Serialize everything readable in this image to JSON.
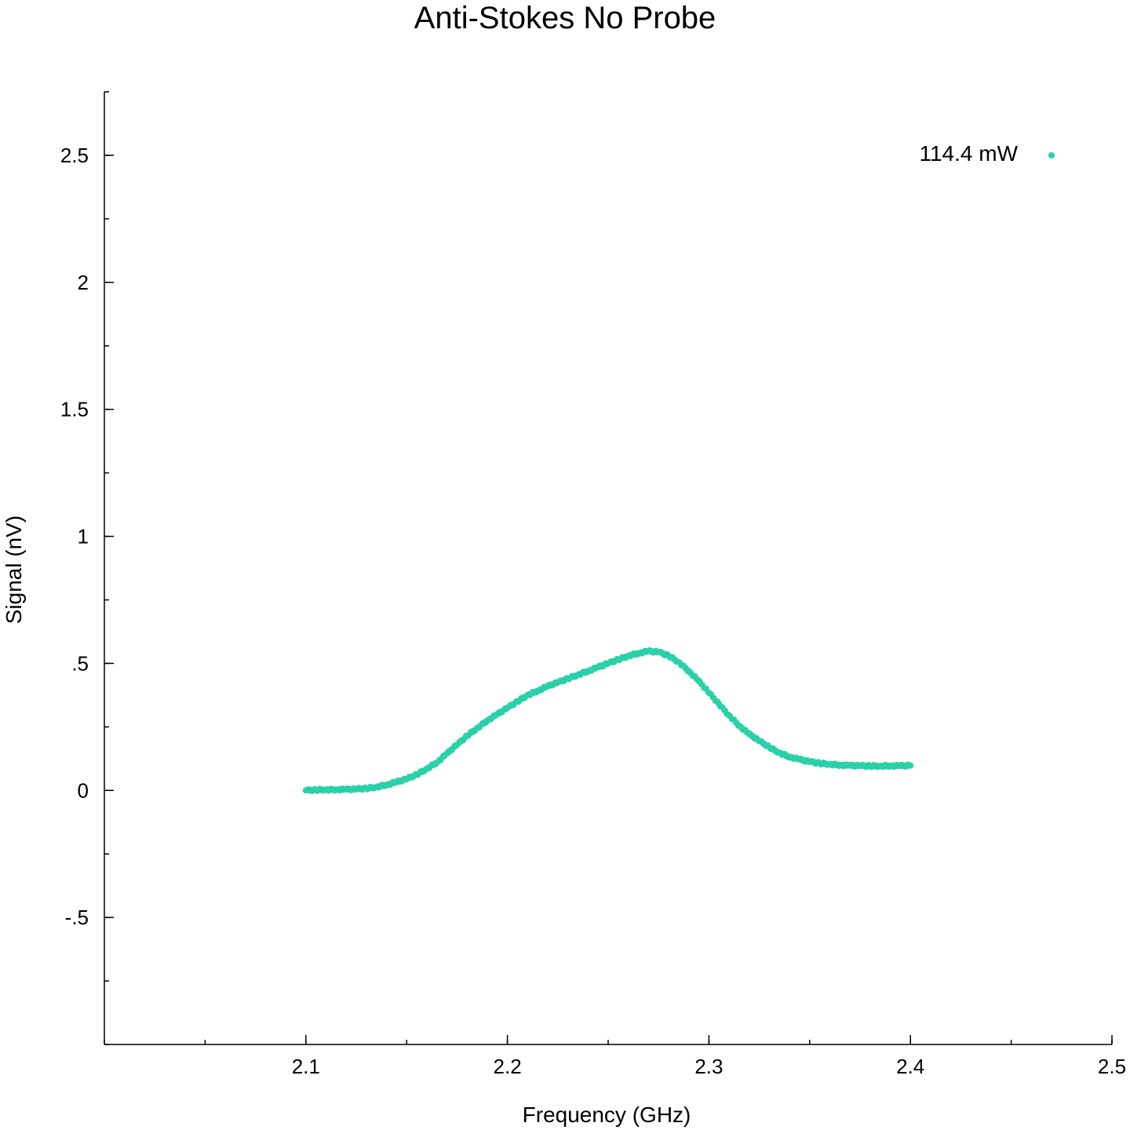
{
  "chart_data": {
    "type": "scatter",
    "title": "Anti-Stokes No Probe",
    "xlabel": "Frequency (GHz)",
    "ylabel": "Signal (nV)",
    "xlim": [
      2.0,
      2.5
    ],
    "ylim": [
      -1.0,
      2.75
    ],
    "x_ticks": [
      {
        "value": 2.1,
        "label": "2.1"
      },
      {
        "value": 2.2,
        "label": "2.2"
      },
      {
        "value": 2.3,
        "label": "2.3"
      },
      {
        "value": 2.4,
        "label": "2.4"
      },
      {
        "value": 2.5,
        "label": "2.5"
      }
    ],
    "y_ticks": [
      {
        "value": -0.5,
        "label": "-.5"
      },
      {
        "value": 0,
        "label": "0"
      },
      {
        "value": 0.5,
        "label": ".5"
      },
      {
        "value": 1,
        "label": "1"
      },
      {
        "value": 1.5,
        "label": "1.5"
      },
      {
        "value": 2,
        "label": "2"
      },
      {
        "value": 2.5,
        "label": "2.5"
      }
    ],
    "grid": false,
    "legend_position": "top-right",
    "series": [
      {
        "name": "114.4 mW",
        "color": "#2ad1a8",
        "points": [
          [
            2.1,
            0.0
          ],
          [
            2.105,
            0.002
          ],
          [
            2.11,
            0.003
          ],
          [
            2.115,
            0.003
          ],
          [
            2.12,
            0.004
          ],
          [
            2.125,
            0.005
          ],
          [
            2.13,
            0.008
          ],
          [
            2.135,
            0.013
          ],
          [
            2.14,
            0.022
          ],
          [
            2.145,
            0.033
          ],
          [
            2.15,
            0.045
          ],
          [
            2.155,
            0.062
          ],
          [
            2.16,
            0.085
          ],
          [
            2.165,
            0.11
          ],
          [
            2.17,
            0.145
          ],
          [
            2.175,
            0.18
          ],
          [
            2.18,
            0.215
          ],
          [
            2.185,
            0.245
          ],
          [
            2.19,
            0.275
          ],
          [
            2.195,
            0.3
          ],
          [
            2.2,
            0.325
          ],
          [
            2.205,
            0.35
          ],
          [
            2.21,
            0.375
          ],
          [
            2.215,
            0.392
          ],
          [
            2.22,
            0.41
          ],
          [
            2.225,
            0.425
          ],
          [
            2.23,
            0.44
          ],
          [
            2.235,
            0.455
          ],
          [
            2.24,
            0.47
          ],
          [
            2.245,
            0.485
          ],
          [
            2.25,
            0.5
          ],
          [
            2.255,
            0.515
          ],
          [
            2.26,
            0.53
          ],
          [
            2.265,
            0.54
          ],
          [
            2.27,
            0.548
          ],
          [
            2.275,
            0.545
          ],
          [
            2.28,
            0.53
          ],
          [
            2.285,
            0.505
          ],
          [
            2.29,
            0.47
          ],
          [
            2.295,
            0.43
          ],
          [
            2.3,
            0.385
          ],
          [
            2.305,
            0.34
          ],
          [
            2.31,
            0.295
          ],
          [
            2.315,
            0.255
          ],
          [
            2.32,
            0.222
          ],
          [
            2.325,
            0.195
          ],
          [
            2.33,
            0.17
          ],
          [
            2.335,
            0.148
          ],
          [
            2.34,
            0.132
          ],
          [
            2.345,
            0.122
          ],
          [
            2.35,
            0.113
          ],
          [
            2.355,
            0.107
          ],
          [
            2.36,
            0.103
          ],
          [
            2.365,
            0.1
          ],
          [
            2.37,
            0.098
          ],
          [
            2.375,
            0.097
          ],
          [
            2.38,
            0.096
          ],
          [
            2.385,
            0.096
          ],
          [
            2.39,
            0.097
          ],
          [
            2.395,
            0.097
          ],
          [
            2.4,
            0.098
          ]
        ]
      }
    ]
  }
}
